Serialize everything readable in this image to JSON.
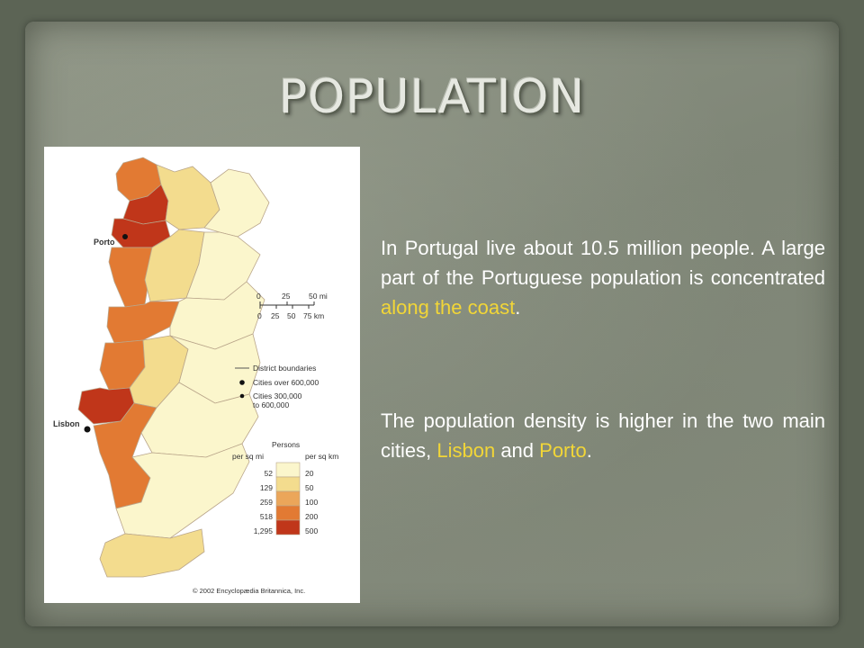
{
  "slide": {
    "title": "POPULATION",
    "paragraph1": {
      "prefix": "In Portugal  live about 10.5 million people. A large part of the Portuguese population is concentrated ",
      "highlight": "along the coast",
      "suffix": "."
    },
    "paragraph2": {
      "prefix": "The population density is higher in the two main cities, ",
      "highlight1": "Lisbon",
      "middle": " and ",
      "highlight2": "Porto",
      "suffix": "."
    }
  },
  "map": {
    "city_labels": [
      "Porto",
      "Lisbon"
    ],
    "scale_bar": {
      "mi_ticks": [
        "0",
        "25",
        "50 mi"
      ],
      "km_ticks": [
        "0",
        "25",
        "50",
        "75 km"
      ]
    },
    "legend": {
      "district_boundaries": "District boundaries",
      "cities_over": "Cities over 600,000",
      "cities_range_1": "Cities 300,000",
      "cities_range_2": "to 600,000",
      "persons_title": "Persons",
      "col_mi": "per sq mi",
      "col_km": "per sq km",
      "classes": [
        {
          "per_sq_mi": "52",
          "per_sq_km": "20",
          "color": "#fbf6cc"
        },
        {
          "per_sq_mi": "129",
          "per_sq_km": "50",
          "color": "#f3dc8e"
        },
        {
          "per_sq_mi": "259",
          "per_sq_km": "100",
          "color": "#eba65a"
        },
        {
          "per_sq_mi": "518",
          "per_sq_km": "200",
          "color": "#e27a33"
        },
        {
          "per_sq_mi": "1,295",
          "per_sq_km": "500",
          "color": "#c0361a"
        }
      ]
    },
    "copyright": "© 2002 Encyclopædia Britannica, Inc."
  },
  "colors": {
    "highlight": "#f2d637",
    "text": "#ffffff"
  }
}
